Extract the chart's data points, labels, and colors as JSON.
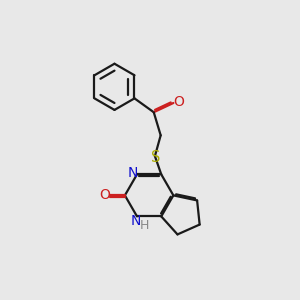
{
  "bg_color": "#e8e8e8",
  "bond_color": "#1a1a1a",
  "N_color": "#1010cc",
  "O_color": "#cc2020",
  "S_color": "#aaaa00",
  "H_color": "#888888",
  "line_width": 1.6,
  "fig_w": 3.0,
  "fig_h": 3.0,
  "dpi": 100,
  "xlim": [
    0,
    10
  ],
  "ylim": [
    0,
    10
  ]
}
